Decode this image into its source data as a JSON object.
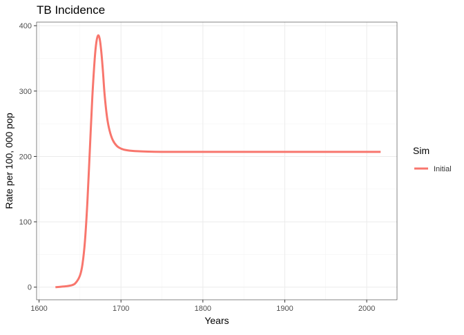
{
  "chart_data": {
    "type": "line",
    "title": "TB Incidence",
    "xlabel": "Years",
    "ylabel": "Rate per 100, 000 pop",
    "xlim": [
      1597,
      2037
    ],
    "ylim": [
      -19.3,
      405.5
    ],
    "x_ticks": [
      1600,
      1700,
      1800,
      1900,
      2000
    ],
    "x_minor_ticks": [
      1650,
      1750,
      1850,
      1950
    ],
    "y_ticks": [
      0,
      100,
      200,
      300,
      400
    ],
    "y_minor_ticks": [
      50,
      150,
      250,
      350
    ],
    "grid": true,
    "legend": {
      "title": "Sim",
      "position": "right"
    },
    "series": [
      {
        "name": "Initial",
        "color": "#F8766D",
        "x": [
          1620,
          1630,
          1640,
          1645,
          1650,
          1653,
          1656,
          1659,
          1662,
          1665,
          1668,
          1670,
          1672,
          1674,
          1676,
          1678,
          1680,
          1683,
          1686,
          1690,
          1695,
          1700,
          1705,
          1710,
          1720,
          1730,
          1750,
          1800,
          1850,
          1900,
          1950,
          2000,
          2017
        ],
        "y": [
          0,
          1,
          3,
          7,
          18,
          35,
          70,
          130,
          210,
          290,
          350,
          375,
          385,
          380,
          360,
          330,
          295,
          260,
          240,
          225,
          216,
          212,
          210,
          209,
          208,
          207.5,
          207,
          207,
          207,
          207,
          207,
          207,
          207
        ]
      }
    ]
  }
}
